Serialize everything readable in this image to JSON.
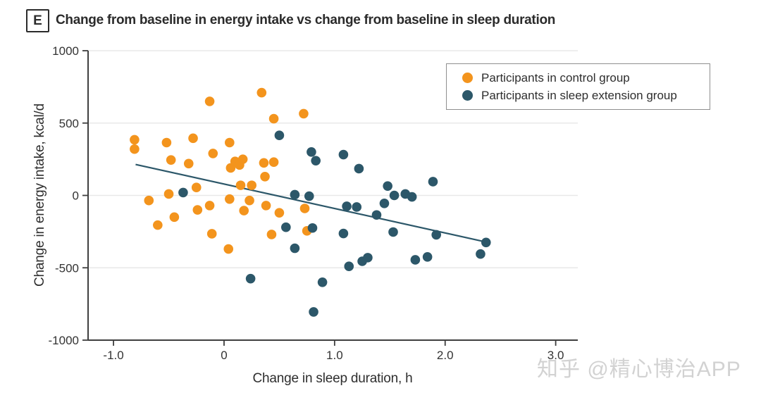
{
  "panel": {
    "label": "E",
    "title": "Change from baseline in energy intake vs change from baseline in sleep duration"
  },
  "watermark": "知乎 @精心博治APP",
  "colors": {
    "control": "#F3941D",
    "extension": "#2C5769",
    "trend": "#2C5769",
    "grid": "#E8E8E8",
    "axis": "#3F3F3F",
    "tick_text": "#333333",
    "watermark": "#D2D2D2"
  },
  "chart_data": {
    "type": "scatter",
    "title": "Change from baseline in energy intake vs change from baseline in sleep duration",
    "xlabel": "Change in sleep duration, h",
    "ylabel": "Change in energy intake, kcal/d",
    "xlim": [
      -1.23,
      3.2
    ],
    "ylim": [
      -1000,
      1000
    ],
    "grid": "horizontal",
    "legend_position": "top-right",
    "xticks": [
      {
        "v": -1,
        "label": "-1.0"
      },
      {
        "v": 0,
        "label": "0"
      },
      {
        "v": 1,
        "label": "1.0"
      },
      {
        "v": 2,
        "label": "2.0"
      },
      {
        "v": 3,
        "label": "3.0"
      }
    ],
    "yticks": [
      {
        "v": 1000,
        "label": "1000"
      },
      {
        "v": 500,
        "label": "500"
      },
      {
        "v": 0,
        "label": "0"
      },
      {
        "v": -500,
        "label": "-500"
      },
      {
        "v": -1000,
        "label": "-1000"
      }
    ],
    "series": [
      {
        "name": "Participants in control group",
        "color": "#F3941D",
        "points": [
          [
            -0.81,
            385
          ],
          [
            -0.81,
            320
          ],
          [
            -0.68,
            -35
          ],
          [
            -0.6,
            -205
          ],
          [
            -0.52,
            365
          ],
          [
            -0.5,
            10
          ],
          [
            -0.48,
            245
          ],
          [
            -0.45,
            -150
          ],
          [
            -0.32,
            220
          ],
          [
            -0.28,
            395
          ],
          [
            -0.25,
            55
          ],
          [
            -0.24,
            -100
          ],
          [
            -0.13,
            650
          ],
          [
            -0.13,
            -70
          ],
          [
            -0.11,
            -265
          ],
          [
            -0.1,
            290
          ],
          [
            0.04,
            -370
          ],
          [
            0.05,
            365
          ],
          [
            0.05,
            -25
          ],
          [
            0.06,
            190
          ],
          [
            0.1,
            235
          ],
          [
            0.14,
            210
          ],
          [
            0.15,
            70
          ],
          [
            0.17,
            250
          ],
          [
            0.18,
            -105
          ],
          [
            0.23,
            -35
          ],
          [
            0.25,
            70
          ],
          [
            0.34,
            710
          ],
          [
            0.36,
            225
          ],
          [
            0.37,
            130
          ],
          [
            0.38,
            -70
          ],
          [
            0.43,
            -270
          ],
          [
            0.45,
            530
          ],
          [
            0.45,
            230
          ],
          [
            0.5,
            -120
          ],
          [
            0.72,
            565
          ],
          [
            0.73,
            -90
          ],
          [
            0.75,
            -245
          ]
        ]
      },
      {
        "name": "Participants in sleep extension group",
        "color": "#2C5769",
        "points": [
          [
            -0.37,
            20
          ],
          [
            0.24,
            -575
          ],
          [
            0.5,
            415
          ],
          [
            0.56,
            -220
          ],
          [
            0.64,
            5
          ],
          [
            0.64,
            -365
          ],
          [
            0.77,
            -5
          ],
          [
            0.79,
            300
          ],
          [
            0.8,
            -225
          ],
          [
            0.81,
            -805
          ],
          [
            0.83,
            240
          ],
          [
            0.89,
            -600
          ],
          [
            1.08,
            282
          ],
          [
            1.08,
            -263
          ],
          [
            1.11,
            -75
          ],
          [
            1.13,
            -490
          ],
          [
            1.2,
            -80
          ],
          [
            1.22,
            185
          ],
          [
            1.25,
            -455
          ],
          [
            1.3,
            -430
          ],
          [
            1.38,
            -135
          ],
          [
            1.45,
            -55
          ],
          [
            1.48,
            65
          ],
          [
            1.53,
            -253
          ],
          [
            1.54,
            0
          ],
          [
            1.64,
            10
          ],
          [
            1.7,
            -10
          ],
          [
            1.73,
            -445
          ],
          [
            1.84,
            -425
          ],
          [
            1.89,
            95
          ],
          [
            1.92,
            -272
          ],
          [
            2.32,
            -405
          ],
          [
            2.37,
            -325
          ]
        ]
      }
    ],
    "trend_line": {
      "x1": -0.8,
      "y1": 214,
      "x2": 2.37,
      "y2": -322
    }
  }
}
